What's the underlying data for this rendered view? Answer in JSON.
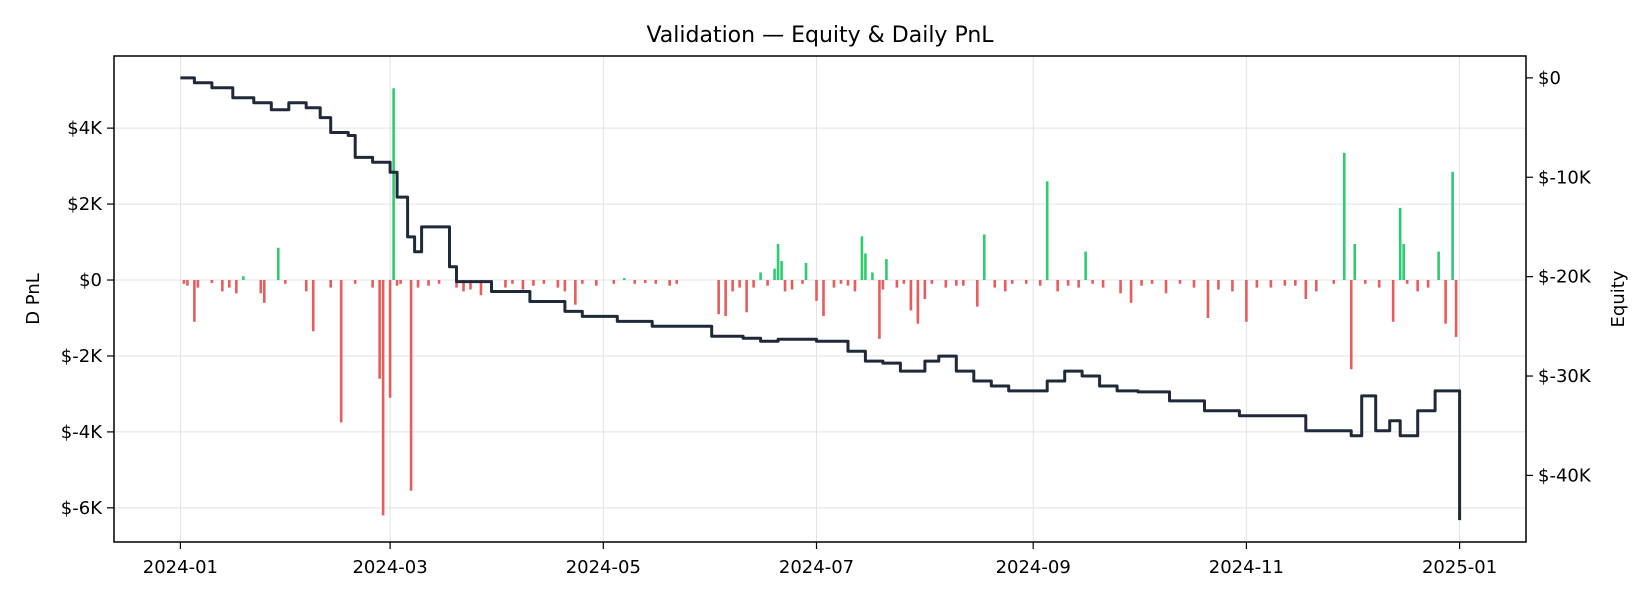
{
  "chart_data": {
    "type": "bar+line",
    "title": "Validation — Equity & Daily PnL",
    "ylabel_left": "D PnL",
    "ylabel_right": "Equity",
    "xlabel": "",
    "x_range": [
      "2023-12-13",
      "2025-01-20"
    ],
    "ylim_left": [
      -6900,
      5900
    ],
    "ylim_right": [
      -46700,
      2200
    ],
    "x_ticks": [
      "2024-01",
      "2024-03",
      "2024-05",
      "2024-07",
      "2024-09",
      "2024-11",
      "2025-01"
    ],
    "y_ticks_left": [
      {
        "value": 4000,
        "label": "$4K"
      },
      {
        "value": 2000,
        "label": "$2K"
      },
      {
        "value": 0,
        "label": "$0"
      },
      {
        "value": -2000,
        "label": "$-2K"
      },
      {
        "value": -4000,
        "label": "$-4K"
      },
      {
        "value": -6000,
        "label": "$-6K"
      }
    ],
    "y_ticks_right": [
      {
        "value": 0,
        "label": "$0"
      },
      {
        "value": -10000,
        "label": "$-10K"
      },
      {
        "value": -20000,
        "label": "$-20K"
      },
      {
        "value": -30000,
        "label": "$-30K"
      },
      {
        "value": -40000,
        "label": "$-40K"
      }
    ],
    "grid": true,
    "colors": {
      "positive": "#2ecc71",
      "negative": "#e85c5c",
      "equity": "#1e2a3a"
    },
    "series": [
      {
        "kind": "bar",
        "axis": "left",
        "points": [
          [
            "2024-01-02",
            -100
          ],
          [
            "2024-01-03",
            -150
          ],
          [
            "2024-01-05",
            -1100
          ],
          [
            "2024-01-06",
            -200
          ],
          [
            "2024-01-10",
            -80
          ],
          [
            "2024-01-13",
            -300
          ],
          [
            "2024-01-15",
            -200
          ],
          [
            "2024-01-17",
            -350
          ],
          [
            "2024-01-19",
            100
          ],
          [
            "2024-01-24",
            -350
          ],
          [
            "2024-01-25",
            -600
          ],
          [
            "2024-01-29",
            850
          ],
          [
            "2024-01-31",
            -100
          ],
          [
            "2024-02-06",
            -300
          ],
          [
            "2024-02-08",
            -1350
          ],
          [
            "2024-02-13",
            -200
          ],
          [
            "2024-02-16",
            -3750
          ],
          [
            "2024-02-20",
            -100
          ],
          [
            "2024-02-25",
            -200
          ],
          [
            "2024-02-27",
            -2600
          ],
          [
            "2024-02-28",
            -6200
          ],
          [
            "2024-03-01",
            -3100
          ],
          [
            "2024-03-02",
            5050
          ],
          [
            "2024-03-03",
            -150
          ],
          [
            "2024-03-04",
            -100
          ],
          [
            "2024-03-07",
            -5550
          ],
          [
            "2024-03-09",
            -200
          ],
          [
            "2024-03-12",
            -150
          ],
          [
            "2024-03-15",
            -100
          ],
          [
            "2024-03-20",
            -200
          ],
          [
            "2024-03-22",
            -300
          ],
          [
            "2024-03-24",
            -250
          ],
          [
            "2024-03-27",
            -400
          ],
          [
            "2024-03-30",
            -150
          ],
          [
            "2024-04-03",
            -200
          ],
          [
            "2024-04-05",
            -100
          ],
          [
            "2024-04-08",
            -250
          ],
          [
            "2024-04-11",
            -150
          ],
          [
            "2024-04-14",
            -100
          ],
          [
            "2024-04-18",
            -200
          ],
          [
            "2024-04-20",
            -300
          ],
          [
            "2024-04-23",
            -650
          ],
          [
            "2024-04-25",
            -100
          ],
          [
            "2024-04-29",
            -150
          ],
          [
            "2024-05-04",
            -100
          ],
          [
            "2024-05-07",
            50
          ],
          [
            "2024-05-10",
            -100
          ],
          [
            "2024-05-13",
            -80
          ],
          [
            "2024-05-16",
            -100
          ],
          [
            "2024-05-20",
            -150
          ],
          [
            "2024-05-22",
            -100
          ],
          [
            "2024-06-03",
            -900
          ],
          [
            "2024-06-05",
            -950
          ],
          [
            "2024-06-07",
            -300
          ],
          [
            "2024-06-09",
            -200
          ],
          [
            "2024-06-11",
            -850
          ],
          [
            "2024-06-13",
            -200
          ],
          [
            "2024-06-15",
            200
          ],
          [
            "2024-06-17",
            -150
          ],
          [
            "2024-06-19",
            300
          ],
          [
            "2024-06-20",
            950
          ],
          [
            "2024-06-21",
            500
          ],
          [
            "2024-06-22",
            -300
          ],
          [
            "2024-06-24",
            -250
          ],
          [
            "2024-06-27",
            -100
          ],
          [
            "2024-06-28",
            450
          ],
          [
            "2024-07-01",
            -550
          ],
          [
            "2024-07-03",
            -950
          ],
          [
            "2024-07-06",
            -200
          ],
          [
            "2024-07-08",
            -100
          ],
          [
            "2024-07-10",
            -150
          ],
          [
            "2024-07-12",
            -300
          ],
          [
            "2024-07-14",
            1150
          ],
          [
            "2024-07-15",
            700
          ],
          [
            "2024-07-17",
            200
          ],
          [
            "2024-07-19",
            -1550
          ],
          [
            "2024-07-20",
            -250
          ],
          [
            "2024-07-21",
            550
          ],
          [
            "2024-07-24",
            -200
          ],
          [
            "2024-07-26",
            -100
          ],
          [
            "2024-07-28",
            -800
          ],
          [
            "2024-07-30",
            -1150
          ],
          [
            "2024-08-01",
            -500
          ],
          [
            "2024-08-03",
            -100
          ],
          [
            "2024-08-07",
            -200
          ],
          [
            "2024-08-10",
            -150
          ],
          [
            "2024-08-12",
            -150
          ],
          [
            "2024-08-16",
            -700
          ],
          [
            "2024-08-18",
            1200
          ],
          [
            "2024-08-21",
            -200
          ],
          [
            "2024-08-24",
            -300
          ],
          [
            "2024-08-26",
            -100
          ],
          [
            "2024-08-30",
            -100
          ],
          [
            "2024-09-03",
            -150
          ],
          [
            "2024-09-05",
            2600
          ],
          [
            "2024-09-08",
            -300
          ],
          [
            "2024-09-11",
            -150
          ],
          [
            "2024-09-14",
            -200
          ],
          [
            "2024-09-16",
            750
          ],
          [
            "2024-09-18",
            -100
          ],
          [
            "2024-09-21",
            -200
          ],
          [
            "2024-09-26",
            -350
          ],
          [
            "2024-09-29",
            -600
          ],
          [
            "2024-10-02",
            -150
          ],
          [
            "2024-10-05",
            -100
          ],
          [
            "2024-10-09",
            -350
          ],
          [
            "2024-10-13",
            -100
          ],
          [
            "2024-10-17",
            -200
          ],
          [
            "2024-10-21",
            -1000
          ],
          [
            "2024-10-24",
            -250
          ],
          [
            "2024-10-28",
            -300
          ],
          [
            "2024-11-01",
            -1100
          ],
          [
            "2024-11-04",
            -200
          ],
          [
            "2024-11-08",
            -200
          ],
          [
            "2024-11-12",
            -150
          ],
          [
            "2024-11-15",
            -150
          ],
          [
            "2024-11-18",
            -500
          ],
          [
            "2024-11-21",
            -300
          ],
          [
            "2024-11-26",
            -100
          ],
          [
            "2024-11-29",
            3350
          ],
          [
            "2024-12-01",
            -2350
          ],
          [
            "2024-12-02",
            950
          ],
          [
            "2024-12-05",
            -100
          ],
          [
            "2024-12-09",
            -200
          ],
          [
            "2024-12-13",
            -1100
          ],
          [
            "2024-12-15",
            1900
          ],
          [
            "2024-12-16",
            950
          ],
          [
            "2024-12-17",
            -100
          ],
          [
            "2024-12-20",
            -300
          ],
          [
            "2024-12-23",
            -200
          ],
          [
            "2024-12-26",
            750
          ],
          [
            "2024-12-28",
            -1150
          ],
          [
            "2024-12-30",
            2850
          ],
          [
            "2024-12-31",
            -1500
          ]
        ]
      },
      {
        "kind": "line",
        "axis": "right",
        "points": [
          [
            "2024-01-01",
            0
          ],
          [
            "2024-01-05",
            -500
          ],
          [
            "2024-01-10",
            -1000
          ],
          [
            "2024-01-16",
            -2000
          ],
          [
            "2024-01-22",
            -2500
          ],
          [
            "2024-01-27",
            -3200
          ],
          [
            "2024-02-01",
            -2500
          ],
          [
            "2024-02-06",
            -3000
          ],
          [
            "2024-02-10",
            -4000
          ],
          [
            "2024-02-13",
            -5500
          ],
          [
            "2024-02-18",
            -5800
          ],
          [
            "2024-02-20",
            -8000
          ],
          [
            "2024-02-25",
            -8500
          ],
          [
            "2024-03-01",
            -9500
          ],
          [
            "2024-03-03",
            -12000
          ],
          [
            "2024-03-06",
            -16000
          ],
          [
            "2024-03-08",
            -17500
          ],
          [
            "2024-03-10",
            -15000
          ],
          [
            "2024-03-15",
            -15000
          ],
          [
            "2024-03-18",
            -19000
          ],
          [
            "2024-03-20",
            -20500
          ],
          [
            "2024-03-30",
            -21500
          ],
          [
            "2024-04-10",
            -22500
          ],
          [
            "2024-04-20",
            -23500
          ],
          [
            "2024-04-25",
            -24000
          ],
          [
            "2024-05-05",
            -24500
          ],
          [
            "2024-05-15",
            -25000
          ],
          [
            "2024-05-25",
            -25000
          ],
          [
            "2024-06-01",
            -26000
          ],
          [
            "2024-06-10",
            -26200
          ],
          [
            "2024-06-15",
            -26500
          ],
          [
            "2024-06-20",
            -26300
          ],
          [
            "2024-07-01",
            -26500
          ],
          [
            "2024-07-10",
            -27500
          ],
          [
            "2024-07-15",
            -28500
          ],
          [
            "2024-07-20",
            -28700
          ],
          [
            "2024-07-25",
            -29500
          ],
          [
            "2024-08-01",
            -28500
          ],
          [
            "2024-08-05",
            -28000
          ],
          [
            "2024-08-10",
            -29500
          ],
          [
            "2024-08-15",
            -30500
          ],
          [
            "2024-08-20",
            -31000
          ],
          [
            "2024-08-25",
            -31500
          ],
          [
            "2024-09-01",
            -31500
          ],
          [
            "2024-09-05",
            -30500
          ],
          [
            "2024-09-10",
            -29500
          ],
          [
            "2024-09-15",
            -30000
          ],
          [
            "2024-09-20",
            -31000
          ],
          [
            "2024-09-25",
            -31500
          ],
          [
            "2024-10-01",
            -31600
          ],
          [
            "2024-10-10",
            -32500
          ],
          [
            "2024-10-20",
            -33500
          ],
          [
            "2024-10-30",
            -34000
          ],
          [
            "2024-11-10",
            -34000
          ],
          [
            "2024-11-18",
            -35500
          ],
          [
            "2024-11-25",
            -35500
          ],
          [
            "2024-12-01",
            -36000
          ],
          [
            "2024-12-04",
            -32000
          ],
          [
            "2024-12-08",
            -35500
          ],
          [
            "2024-12-12",
            -34500
          ],
          [
            "2024-12-15",
            -36000
          ],
          [
            "2024-12-20",
            -33500
          ],
          [
            "2024-12-25",
            -31500
          ],
          [
            "2025-01-01",
            -44500
          ]
        ]
      }
    ]
  }
}
